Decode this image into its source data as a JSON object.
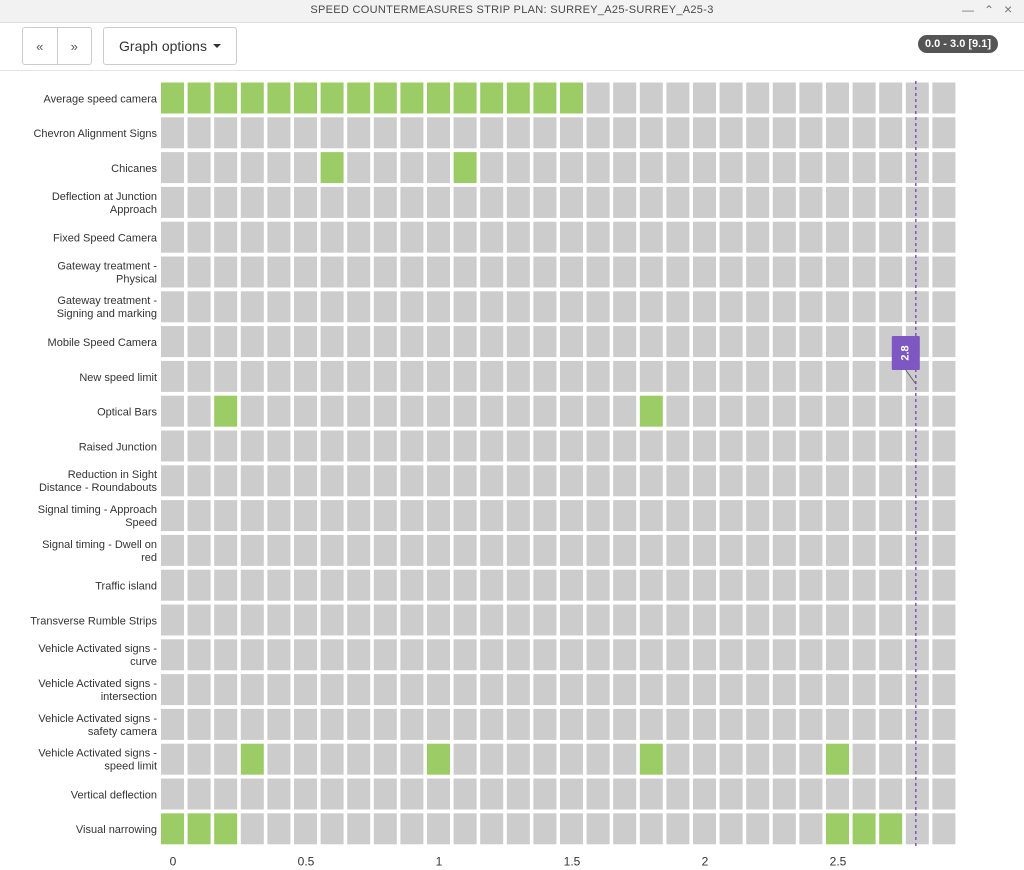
{
  "window": {
    "title": "SPEED COUNTERMEASURES STRIP PLAN: SURREY_A25-SURREY_A25-3",
    "minimize_glyph": "—",
    "collapse_glyph": "⌃",
    "close_glyph": "×"
  },
  "toolbar": {
    "prev_label": "«",
    "next_label": "»",
    "graph_options_label": "Graph options",
    "range_badge": "0.0 - 3.0 [9.1]"
  },
  "colors": {
    "active": "#9ccc65",
    "inactive": "#cccccc",
    "marker": "#7e57c2"
  },
  "chart_data": {
    "type": "heatmap",
    "x_start": 0,
    "x_step": 0.1,
    "cell_count": 30,
    "xlim": [
      0,
      3.0
    ],
    "x_ticks": [
      0,
      0.5,
      1,
      1.5,
      2,
      2.5
    ],
    "x_tick_labels": [
      "0",
      "0.5",
      "1",
      "1.5",
      "2",
      "2.5"
    ],
    "marker": {
      "x": 2.8,
      "label": "2.8"
    },
    "rows": [
      {
        "label": [
          "Average speed camera"
        ],
        "active": [
          0,
          0.1,
          0.2,
          0.3,
          0.4,
          0.5,
          0.6,
          0.7,
          0.8,
          0.9,
          1.0,
          1.1,
          1.2,
          1.3,
          1.4,
          1.5
        ]
      },
      {
        "label": [
          "Chevron Alignment Signs"
        ],
        "active": []
      },
      {
        "label": [
          "Chicanes"
        ],
        "active": [
          0.6,
          1.1
        ]
      },
      {
        "label": [
          "Deflection at Junction",
          "Approach"
        ],
        "active": []
      },
      {
        "label": [
          "Fixed Speed Camera"
        ],
        "active": []
      },
      {
        "label": [
          "Gateway treatment -",
          "Physical"
        ],
        "active": []
      },
      {
        "label": [
          "Gateway treatment -",
          "Signing and marking"
        ],
        "active": []
      },
      {
        "label": [
          "Mobile Speed Camera"
        ],
        "active": []
      },
      {
        "label": [
          "New speed limit"
        ],
        "active": []
      },
      {
        "label": [
          "Optical Bars"
        ],
        "active": [
          0.2,
          1.8
        ]
      },
      {
        "label": [
          "Raised Junction"
        ],
        "active": []
      },
      {
        "label": [
          "Reduction in Sight",
          "Distance - Roundabouts"
        ],
        "active": []
      },
      {
        "label": [
          "Signal timing - Approach",
          "Speed"
        ],
        "active": []
      },
      {
        "label": [
          "Signal timing - Dwell on",
          "red"
        ],
        "active": []
      },
      {
        "label": [
          "Traffic island"
        ],
        "active": []
      },
      {
        "label": [
          "Transverse Rumble Strips"
        ],
        "active": []
      },
      {
        "label": [
          "Vehicle Activated signs -",
          "curve"
        ],
        "active": []
      },
      {
        "label": [
          "Vehicle Activated signs -",
          "intersection"
        ],
        "active": []
      },
      {
        "label": [
          "Vehicle Activated signs -",
          "safety camera"
        ],
        "active": []
      },
      {
        "label": [
          "Vehicle Activated signs -",
          "speed limit"
        ],
        "active": [
          0.3,
          1.0,
          1.8,
          2.5
        ]
      },
      {
        "label": [
          "Vertical deflection"
        ],
        "active": []
      },
      {
        "label": [
          "Visual narrowing"
        ],
        "active": [
          0,
          0.1,
          0.2,
          2.5,
          2.6,
          2.7
        ]
      }
    ]
  }
}
